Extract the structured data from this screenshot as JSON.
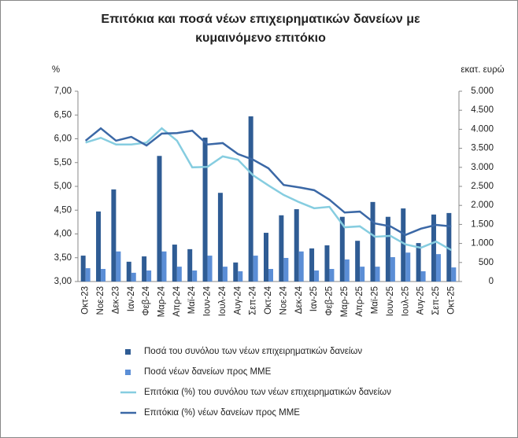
{
  "chart_data": {
    "type": "bar-line",
    "title": "Επιτόκια και ποσά νέων επιχειρηματικών δανείων με κυμαινόμενο επιτόκιο",
    "y_label": "%",
    "y2_label": "εκατ. ευρώ",
    "categories": [
      "Οκτ-23",
      "Νοε-23",
      "Δεκ-23",
      "Ιαν-24",
      "Φεβ-24",
      "Μαρ-24",
      "Απρ-24",
      "Μαϊ-24",
      "Ιουν-24",
      "Ιουλ-24",
      "Αυγ-24",
      "Σεπ-24",
      "Οκτ-24",
      "Νοε-24",
      "Δεκ-24",
      "Ιαν-25",
      "Φεβ-25",
      "Μαρ-25",
      "Απρ-25",
      "Μαϊ-25",
      "Ιουν-25",
      "Ιουλ-25",
      "Αυγ-25",
      "Σεπ-25",
      "Οκτ-25"
    ],
    "series": [
      {
        "name": "Ποσά του συνόλου των νέων επιχειρηματικών δανείων",
        "type": "bar",
        "axis": "y2",
        "color": "#2f5c94",
        "values": [
          680,
          1840,
          2420,
          520,
          660,
          3300,
          970,
          850,
          3780,
          2330,
          500,
          4340,
          1280,
          1740,
          1900,
          870,
          950,
          1700,
          1070,
          2090,
          1700,
          1920,
          1010,
          1760,
          1800
        ]
      },
      {
        "name": "Ποσά νέων δανείων προς ΜΜΕ",
        "type": "bar",
        "axis": "y2",
        "color": "#5b8ed6",
        "values": [
          350,
          330,
          790,
          230,
          290,
          790,
          390,
          290,
          680,
          390,
          270,
          680,
          330,
          620,
          790,
          290,
          330,
          580,
          390,
          390,
          640,
          760,
          270,
          720,
          370
        ]
      },
      {
        "name": "Επιτόκια (%) του συνόλου των νέων επιχειρηματικών δανείων",
        "type": "line",
        "axis": "y",
        "color": "#86cde0",
        "values": [
          5.92,
          6.02,
          5.88,
          5.88,
          5.92,
          6.22,
          5.96,
          5.4,
          5.41,
          5.63,
          5.56,
          5.23,
          5.02,
          4.82,
          4.67,
          4.54,
          4.57,
          4.14,
          4.16,
          3.94,
          3.96,
          3.78,
          3.71,
          3.84,
          3.66
        ]
      },
      {
        "name": "Επιτόκια (%) νέων δανείων προς ΜΜΕ",
        "type": "line",
        "axis": "y",
        "color": "#3b68a6",
        "values": [
          5.96,
          6.22,
          5.96,
          6.04,
          5.86,
          6.11,
          6.12,
          6.17,
          5.88,
          5.91,
          5.68,
          5.56,
          5.38,
          5.03,
          4.98,
          4.92,
          4.72,
          4.45,
          4.47,
          4.22,
          4.16,
          3.98,
          4.11,
          4.19,
          4.16
        ]
      }
    ],
    "ylim": [
      3,
      7
    ],
    "yticks": [
      {
        "value": 3,
        "label": "3,00"
      },
      {
        "value": 3.5,
        "label": "3,50"
      },
      {
        "value": 4,
        "label": "4,00"
      },
      {
        "value": 4.5,
        "label": "4,50"
      },
      {
        "value": 5,
        "label": "5,00"
      },
      {
        "value": 5.5,
        "label": "5,50"
      },
      {
        "value": 6,
        "label": "6,00"
      },
      {
        "value": 6.5,
        "label": "6,50"
      },
      {
        "value": 7,
        "label": "7,00"
      }
    ],
    "y2lim": [
      0,
      5000
    ],
    "y2ticks": [
      0,
      500,
      {
        "value": 1000,
        "label": "1.000"
      },
      {
        "value": 1500,
        "label": "1.500"
      },
      {
        "value": 2000,
        "label": "2.000"
      },
      {
        "value": 2500,
        "label": "2.500"
      },
      {
        "value": 3000,
        "label": "3.000"
      },
      {
        "value": 3500,
        "label": "3.500"
      },
      {
        "value": 4000,
        "label": "4.000"
      },
      {
        "value": 4500,
        "label": "4.500"
      },
      {
        "value": 5000,
        "label": "5.000"
      }
    ],
    "grid": false,
    "legend": "bottom"
  }
}
